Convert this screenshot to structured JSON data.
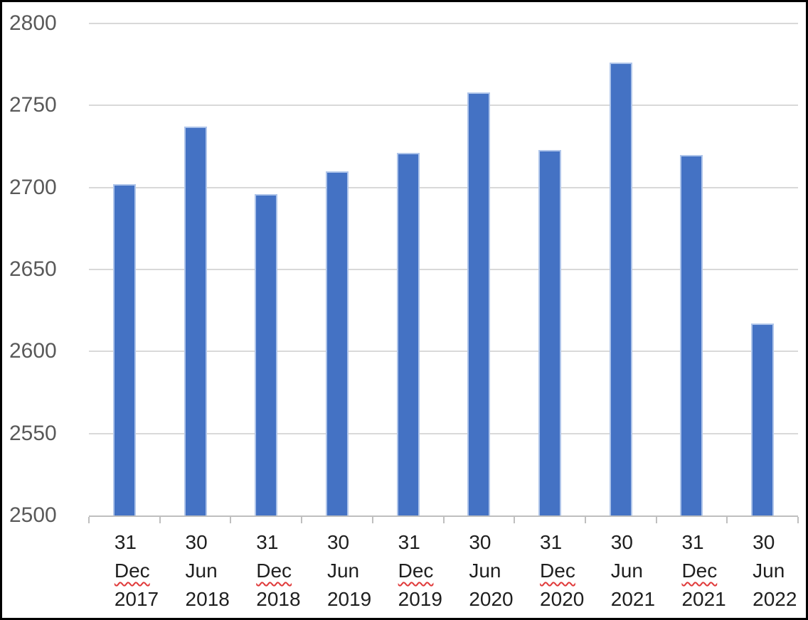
{
  "chart_data": {
    "type": "bar",
    "title": "",
    "xlabel": "",
    "ylabel": "",
    "ylim": [
      2500,
      2800
    ],
    "ytick_interval": 50,
    "ytick_labels": [
      "2500",
      "2550",
      "2600",
      "2650",
      "2700",
      "2750",
      "2800"
    ],
    "grid": "horizontal",
    "legend": "none",
    "categories": [
      {
        "day": "31",
        "month": "Dec",
        "year": "2017",
        "month_spellcheck_underline": true
      },
      {
        "day": "30",
        "month": "Jun",
        "year": "2018",
        "month_spellcheck_underline": false
      },
      {
        "day": "31",
        "month": "Dec",
        "year": "2018",
        "month_spellcheck_underline": true
      },
      {
        "day": "30",
        "month": "Jun",
        "year": "2019",
        "month_spellcheck_underline": false
      },
      {
        "day": "31",
        "month": "Dec",
        "year": "2019",
        "month_spellcheck_underline": true
      },
      {
        "day": "30",
        "month": "Jun",
        "year": "2020",
        "month_spellcheck_underline": false
      },
      {
        "day": "31",
        "month": "Dec",
        "year": "2020",
        "month_spellcheck_underline": true
      },
      {
        "day": "30",
        "month": "Jun",
        "year": "2021",
        "month_spellcheck_underline": false
      },
      {
        "day": "31",
        "month": "Dec",
        "year": "2021",
        "month_spellcheck_underline": true
      },
      {
        "day": "30",
        "month": "Jun",
        "year": "2022",
        "month_spellcheck_underline": false
      }
    ],
    "values": [
      2702,
      2737,
      2696,
      2710,
      2721,
      2758,
      2723,
      2776,
      2720,
      2617
    ],
    "colors": {
      "bar_fill": "#4472C4",
      "bar_border": "#AFC5EA",
      "gridline": "#D9D9D9",
      "axis_line": "#BFBFBF",
      "y_tick_text": "#595959",
      "x_tick_text": "#1F1F1F",
      "spellcheck_underline": "#E03A3A",
      "frame_border": "#000000",
      "background": "#FFFFFF"
    }
  }
}
